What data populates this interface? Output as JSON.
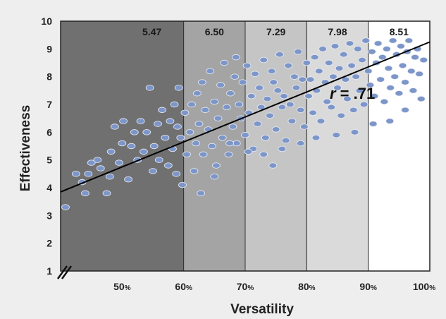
{
  "chart_data": {
    "type": "scatter",
    "xlabel": "Versatility",
    "ylabel": "Effectiveness",
    "xlim": [
      40,
      100
    ],
    "ylim": [
      1,
      10
    ],
    "axis_break": "x-axis break mark at lower-left",
    "y_ticks": [
      "1",
      "2",
      "3",
      "4",
      "5",
      "6",
      "7",
      "8",
      "9",
      "10"
    ],
    "x_ticks": [
      {
        "value": "50",
        "unit": "%"
      },
      {
        "value": "60",
        "unit": "%"
      },
      {
        "value": "70",
        "unit": "%"
      },
      {
        "value": "80",
        "unit": "%"
      },
      {
        "value": "90",
        "unit": "%"
      },
      {
        "value": "100",
        "unit": "%"
      }
    ],
    "bands": [
      {
        "x_from": 40,
        "x_to": 60,
        "label": "5.47",
        "color": "#707070"
      },
      {
        "x_from": 60,
        "x_to": 70,
        "label": "6.50",
        "color": "#a4a4a4"
      },
      {
        "x_from": 70,
        "x_to": 80,
        "label": "7.29",
        "color": "#c5c5c5"
      },
      {
        "x_from": 80,
        "x_to": 90,
        "label": "7.98",
        "color": "#dadada"
      },
      {
        "x_from": 90,
        "x_to": 100,
        "label": "8.51",
        "color": "#ffffff"
      }
    ],
    "trend_line": {
      "x": [
        40,
        100
      ],
      "y": [
        3.85,
        9.25
      ]
    },
    "annotation": {
      "r_symbol": "r",
      "text": " = .71"
    },
    "point_color": "#7d96c9",
    "points": [
      [
        40.8,
        3.3
      ],
      [
        42.5,
        4.5
      ],
      [
        43.5,
        4.2
      ],
      [
        44,
        3.8
      ],
      [
        44.5,
        4.5
      ],
      [
        45,
        4.9
      ],
      [
        46,
        5.0
      ],
      [
        46.5,
        4.7
      ],
      [
        47.5,
        3.8
      ],
      [
        48,
        4.4
      ],
      [
        48.2,
        5.3
      ],
      [
        48.8,
        6.2
      ],
      [
        49.5,
        4.9
      ],
      [
        50,
        5.6
      ],
      [
        50.2,
        6.4
      ],
      [
        51,
        4.3
      ],
      [
        51.5,
        5.5
      ],
      [
        52,
        6.0
      ],
      [
        52.5,
        5.0
      ],
      [
        53,
        6.4
      ],
      [
        53.5,
        5.3
      ],
      [
        54,
        6.0
      ],
      [
        54.5,
        7.6
      ],
      [
        55,
        4.6
      ],
      [
        55.2,
        5.5
      ],
      [
        55.8,
        6.3
      ],
      [
        56,
        5.0
      ],
      [
        56.5,
        6.8
      ],
      [
        57,
        5.8
      ],
      [
        57.5,
        4.8
      ],
      [
        57.8,
        6.4
      ],
      [
        58.2,
        5.4
      ],
      [
        58.5,
        7.0
      ],
      [
        58.8,
        4.5
      ],
      [
        59,
        6.2
      ],
      [
        59.2,
        7.6
      ],
      [
        59.5,
        5.8
      ],
      [
        59.8,
        4.1
      ],
      [
        60.2,
        6.7
      ],
      [
        60.5,
        5.2
      ],
      [
        61,
        6.0
      ],
      [
        61.3,
        7.0
      ],
      [
        61.7,
        4.6
      ],
      [
        62,
        5.6
      ],
      [
        62.2,
        7.4
      ],
      [
        62.5,
        6.3
      ],
      [
        62.8,
        3.8
      ],
      [
        63,
        7.8
      ],
      [
        63.2,
        5.2
      ],
      [
        63.5,
        6.8
      ],
      [
        64,
        6.1
      ],
      [
        64.3,
        8.2
      ],
      [
        64.6,
        5.5
      ],
      [
        65,
        7.1
      ],
      [
        65.3,
        4.8
      ],
      [
        65.6,
        6.5
      ],
      [
        66,
        7.7
      ],
      [
        66.3,
        5.8
      ],
      [
        66.6,
        8.5
      ],
      [
        67,
        6.9
      ],
      [
        67.3,
        5.2
      ],
      [
        67.6,
        7.4
      ],
      [
        68,
        6.2
      ],
      [
        68.3,
        8.0
      ],
      [
        68.6,
        5.6
      ],
      [
        69,
        7.0
      ],
      [
        69.3,
        6.5
      ],
      [
        69.6,
        7.8
      ],
      [
        70,
        5.9
      ],
      [
        70.3,
        8.4
      ],
      [
        70.6,
        6.7
      ],
      [
        71,
        7.3
      ],
      [
        71.3,
        5.4
      ],
      [
        71.6,
        8.1
      ],
      [
        72,
        6.3
      ],
      [
        72.3,
        7.6
      ],
      [
        72.6,
        6.9
      ],
      [
        73,
        8.6
      ],
      [
        73.3,
        5.8
      ],
      [
        73.6,
        7.2
      ],
      [
        74,
        6.6
      ],
      [
        74.3,
        8.2
      ],
      [
        74.6,
        7.8
      ],
      [
        75,
        6.1
      ],
      [
        75.3,
        7.5
      ],
      [
        75.6,
        8.8
      ],
      [
        76,
        6.9
      ],
      [
        76.3,
        7.3
      ],
      [
        76.6,
        5.7
      ],
      [
        77,
        8.4
      ],
      [
        77.3,
        7.0
      ],
      [
        77.6,
        6.4
      ],
      [
        78,
        8.0
      ],
      [
        78.3,
        7.6
      ],
      [
        78.6,
        8.9
      ],
      [
        79,
        6.8
      ],
      [
        79.3,
        7.9
      ],
      [
        79.6,
        6.2
      ],
      [
        80,
        8.5
      ],
      [
        80.3,
        7.3
      ],
      [
        80.6,
        7.9
      ],
      [
        81,
        6.7
      ],
      [
        81.3,
        8.7
      ],
      [
        81.6,
        7.5
      ],
      [
        82,
        8.2
      ],
      [
        82.3,
        6.4
      ],
      [
        82.6,
        9.0
      ],
      [
        83,
        7.8
      ],
      [
        83.3,
        7.1
      ],
      [
        83.6,
        8.5
      ],
      [
        84,
        6.9
      ],
      [
        84.3,
        8.0
      ],
      [
        84.6,
        9.1
      ],
      [
        85,
        7.6
      ],
      [
        85.3,
        8.3
      ],
      [
        85.6,
        6.6
      ],
      [
        86,
        8.8
      ],
      [
        86.3,
        7.9
      ],
      [
        86.6,
        7.2
      ],
      [
        87,
        9.2
      ],
      [
        87.3,
        8.4
      ],
      [
        87.6,
        6.8
      ],
      [
        88,
        8.0
      ],
      [
        88.3,
        9.0
      ],
      [
        88.6,
        7.5
      ],
      [
        89,
        8.6
      ],
      [
        89.3,
        7.0
      ],
      [
        89.6,
        9.3
      ],
      [
        90,
        8.2
      ],
      [
        90.3,
        7.7
      ],
      [
        90.6,
        8.9
      ],
      [
        91,
        7.3
      ],
      [
        91.3,
        8.5
      ],
      [
        91.6,
        9.2
      ],
      [
        92,
        7.9
      ],
      [
        92.3,
        8.7
      ],
      [
        92.6,
        7.1
      ],
      [
        93,
        9.0
      ],
      [
        93.3,
        8.3
      ],
      [
        93.6,
        7.6
      ],
      [
        94,
        9.3
      ],
      [
        94.3,
        8.0
      ],
      [
        94.6,
        8.8
      ],
      [
        95,
        7.4
      ],
      [
        95.3,
        9.1
      ],
      [
        95.6,
        8.4
      ],
      [
        96,
        7.8
      ],
      [
        96.3,
        8.9
      ],
      [
        96.6,
        9.3
      ],
      [
        97,
        8.2
      ],
      [
        97.3,
        7.5
      ],
      [
        97.6,
        8.7
      ],
      [
        98,
        9.0
      ],
      [
        98.3,
        8.1
      ],
      [
        98.6,
        7.2
      ],
      [
        99,
        8.6
      ],
      [
        96,
        6.8
      ],
      [
        93.5,
        6.4
      ],
      [
        90.8,
        6.3
      ],
      [
        87.8,
        6.0
      ],
      [
        84.8,
        5.9
      ],
      [
        81.5,
        5.8
      ],
      [
        79,
        5.6
      ],
      [
        76,
        5.4
      ],
      [
        73,
        5.2
      ],
      [
        70.5,
        5.3
      ],
      [
        67.5,
        5.6
      ],
      [
        65,
        4.4
      ],
      [
        74.5,
        4.8
      ],
      [
        68.5,
        8.7
      ]
    ]
  }
}
